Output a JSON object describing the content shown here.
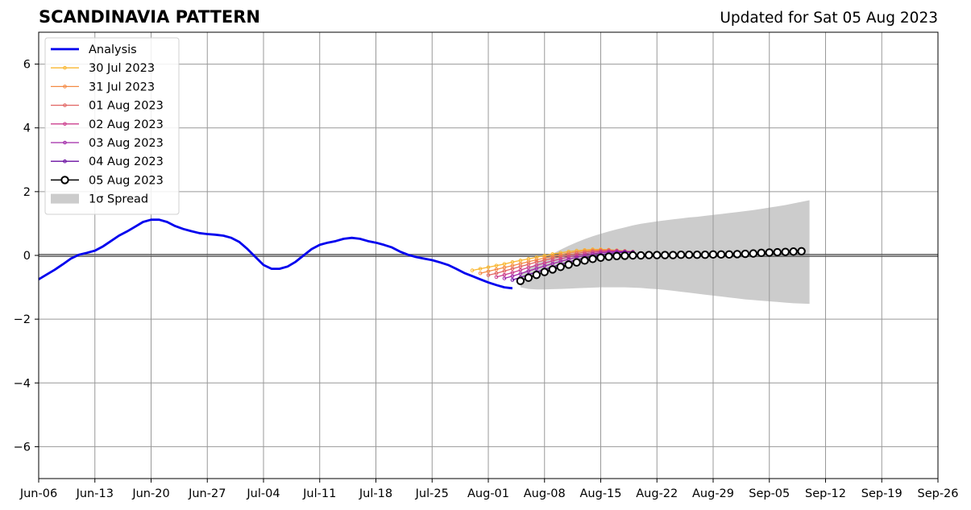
{
  "chart_data": {
    "type": "line",
    "title": "SCANDINAVIA PATTERN",
    "subtitle": "Updated for Sat 05 Aug 2023",
    "xlabel": "",
    "ylabel": "",
    "xlim": [
      "2023-06-06",
      "2023-09-26"
    ],
    "ylim": [
      -7,
      7
    ],
    "grid": true,
    "legend_position": "top-left",
    "x_ticks": [
      "Jun-06",
      "Jun-13",
      "Jun-20",
      "Jun-27",
      "Jul-04",
      "Jul-11",
      "Jul-18",
      "Jul-25",
      "Aug-01",
      "Aug-08",
      "Aug-15",
      "Aug-22",
      "Aug-29",
      "Sep-05",
      "Sep-12",
      "Sep-19",
      "Sep-26"
    ],
    "y_ticks": [
      -6,
      -4,
      -2,
      0,
      2,
      4,
      6
    ],
    "analysis": {
      "name": "Analysis",
      "color": "#0000ee",
      "points": [
        [
          "2023-06-06",
          -0.75
        ],
        [
          "2023-06-07",
          -0.6
        ],
        [
          "2023-06-08",
          -0.45
        ],
        [
          "2023-06-09",
          -0.28
        ],
        [
          "2023-06-10",
          -0.1
        ],
        [
          "2023-06-11",
          0.02
        ],
        [
          "2023-06-12",
          0.08
        ],
        [
          "2023-06-13",
          0.15
        ],
        [
          "2023-06-14",
          0.28
        ],
        [
          "2023-06-15",
          0.45
        ],
        [
          "2023-06-16",
          0.62
        ],
        [
          "2023-06-17",
          0.75
        ],
        [
          "2023-06-18",
          0.9
        ],
        [
          "2023-06-19",
          1.05
        ],
        [
          "2023-06-20",
          1.12
        ],
        [
          "2023-06-21",
          1.12
        ],
        [
          "2023-06-22",
          1.05
        ],
        [
          "2023-06-23",
          0.92
        ],
        [
          "2023-06-24",
          0.83
        ],
        [
          "2023-06-25",
          0.76
        ],
        [
          "2023-06-26",
          0.7
        ],
        [
          "2023-06-27",
          0.67
        ],
        [
          "2023-06-28",
          0.65
        ],
        [
          "2023-06-29",
          0.62
        ],
        [
          "2023-06-30",
          0.55
        ],
        [
          "2023-07-01",
          0.42
        ],
        [
          "2023-07-02",
          0.2
        ],
        [
          "2023-07-03",
          -0.05
        ],
        [
          "2023-07-04",
          -0.3
        ],
        [
          "2023-07-05",
          -0.42
        ],
        [
          "2023-07-06",
          -0.42
        ],
        [
          "2023-07-07",
          -0.35
        ],
        [
          "2023-07-08",
          -0.2
        ],
        [
          "2023-07-09",
          0.0
        ],
        [
          "2023-07-10",
          0.2
        ],
        [
          "2023-07-11",
          0.33
        ],
        [
          "2023-07-12",
          0.4
        ],
        [
          "2023-07-13",
          0.45
        ],
        [
          "2023-07-14",
          0.52
        ],
        [
          "2023-07-15",
          0.55
        ],
        [
          "2023-07-16",
          0.52
        ],
        [
          "2023-07-17",
          0.45
        ],
        [
          "2023-07-18",
          0.4
        ],
        [
          "2023-07-19",
          0.33
        ],
        [
          "2023-07-20",
          0.25
        ],
        [
          "2023-07-21",
          0.12
        ],
        [
          "2023-07-22",
          0.02
        ],
        [
          "2023-07-23",
          -0.05
        ],
        [
          "2023-07-24",
          -0.1
        ],
        [
          "2023-07-25",
          -0.15
        ],
        [
          "2023-07-26",
          -0.22
        ],
        [
          "2023-07-27",
          -0.3
        ],
        [
          "2023-07-28",
          -0.42
        ],
        [
          "2023-07-29",
          -0.55
        ],
        [
          "2023-07-30",
          -0.65
        ],
        [
          "2023-07-31",
          -0.75
        ],
        [
          "2023-08-01",
          -0.85
        ],
        [
          "2023-08-02",
          -0.93
        ],
        [
          "2023-08-03",
          -1.0
        ],
        [
          "2023-08-04",
          -1.03
        ]
      ]
    },
    "forecasts": [
      {
        "name": "30 Jul 2023",
        "color": "#f9b731",
        "start": "2023-07-30",
        "values": [
          -0.47,
          -0.42,
          -0.37,
          -0.32,
          -0.27,
          -0.21,
          -0.16,
          -0.11,
          -0.06,
          -0.01,
          0.04,
          0.08,
          0.12,
          0.15,
          0.17,
          0.19,
          0.19,
          0.18,
          0.16,
          0.14,
          0.12
        ]
      },
      {
        "name": "31 Jul 2023",
        "color": "#f48a45",
        "start": "2023-07-31",
        "values": [
          -0.56,
          -0.5,
          -0.44,
          -0.38,
          -0.32,
          -0.26,
          -0.2,
          -0.14,
          -0.08,
          -0.03,
          0.02,
          0.07,
          0.11,
          0.14,
          0.16,
          0.17,
          0.17,
          0.15,
          0.13,
          0.11
        ]
      },
      {
        "name": "01 Aug 2023",
        "color": "#e16462",
        "start": "2023-08-01",
        "values": [
          -0.62,
          -0.56,
          -0.49,
          -0.42,
          -0.35,
          -0.28,
          -0.21,
          -0.15,
          -0.09,
          -0.04,
          0.01,
          0.06,
          0.1,
          0.13,
          0.15,
          0.16,
          0.15,
          0.13,
          0.11
        ]
      },
      {
        "name": "02 Aug 2023",
        "color": "#cc3f8e",
        "start": "2023-08-02",
        "values": [
          -0.68,
          -0.61,
          -0.54,
          -0.46,
          -0.38,
          -0.31,
          -0.24,
          -0.17,
          -0.11,
          -0.05,
          0.0,
          0.05,
          0.09,
          0.12,
          0.13,
          0.14,
          0.13,
          0.11
        ]
      },
      {
        "name": "03 Aug 2023",
        "color": "#a028a8",
        "start": "2023-08-03",
        "values": [
          -0.72,
          -0.65,
          -0.57,
          -0.49,
          -0.41,
          -0.33,
          -0.26,
          -0.19,
          -0.12,
          -0.06,
          -0.01,
          0.04,
          0.08,
          0.1,
          0.12,
          0.12,
          0.11
        ]
      },
      {
        "name": "04 Aug 2023",
        "color": "#6a0fa0",
        "start": "2023-08-04",
        "values": [
          -0.77,
          -0.69,
          -0.6,
          -0.52,
          -0.44,
          -0.36,
          -0.28,
          -0.21,
          -0.14,
          -0.08,
          -0.03,
          0.02,
          0.06,
          0.08,
          0.1,
          0.1
        ]
      }
    ],
    "current": {
      "name": "05 Aug 2023",
      "color": "#000000",
      "start": "2023-08-05",
      "values": [
        -0.8,
        -0.7,
        -0.61,
        -0.52,
        -0.44,
        -0.36,
        -0.29,
        -0.22,
        -0.16,
        -0.11,
        -0.07,
        -0.04,
        -0.02,
        -0.01,
        0.0,
        0.0,
        0.01,
        0.01,
        0.01,
        0.01,
        0.02,
        0.02,
        0.02,
        0.02,
        0.03,
        0.03,
        0.03,
        0.04,
        0.05,
        0.06,
        0.08,
        0.09,
        0.1,
        0.11,
        0.12,
        0.13
      ]
    },
    "spread": {
      "name": "1σ Spread",
      "color": "#cccccc",
      "start": "2023-08-05",
      "upper": [
        -0.6,
        -0.42,
        -0.25,
        -0.1,
        0.05,
        0.18,
        0.3,
        0.41,
        0.51,
        0.6,
        0.68,
        0.75,
        0.82,
        0.88,
        0.94,
        0.99,
        1.03,
        1.07,
        1.1,
        1.13,
        1.16,
        1.19,
        1.21,
        1.24,
        1.27,
        1.3,
        1.33,
        1.36,
        1.39,
        1.42,
        1.46,
        1.5,
        1.54,
        1.58,
        1.63,
        1.68,
        1.73
      ],
      "lower": [
        -1.0,
        -1.05,
        -1.07,
        -1.07,
        -1.06,
        -1.05,
        -1.04,
        -1.03,
        -1.02,
        -1.01,
        -1.0,
        -1.0,
        -1.0,
        -1.0,
        -1.01,
        -1.02,
        -1.04,
        -1.06,
        -1.08,
        -1.11,
        -1.14,
        -1.17,
        -1.2,
        -1.23,
        -1.26,
        -1.29,
        -1.32,
        -1.35,
        -1.38,
        -1.4,
        -1.42,
        -1.44,
        -1.46,
        -1.48,
        -1.5,
        -1.51,
        -1.52
      ]
    },
    "legend": [
      {
        "label": "Analysis",
        "kind": "analysis",
        "color": "#0000ee"
      },
      {
        "label": "30 Jul 2023",
        "kind": "forecast",
        "color": "#f9b731"
      },
      {
        "label": "31 Jul 2023",
        "kind": "forecast",
        "color": "#f48a45"
      },
      {
        "label": "01 Aug 2023",
        "kind": "forecast",
        "color": "#e16462"
      },
      {
        "label": "02 Aug 2023",
        "kind": "forecast",
        "color": "#cc3f8e"
      },
      {
        "label": "03 Aug 2023",
        "kind": "forecast",
        "color": "#a028a8"
      },
      {
        "label": "04 Aug 2023",
        "kind": "forecast",
        "color": "#6a0fa0"
      },
      {
        "label": "05 Aug 2023",
        "kind": "current",
        "color": "#000000"
      },
      {
        "label": "1σ Spread",
        "kind": "spread",
        "color": "#cccccc"
      }
    ]
  }
}
